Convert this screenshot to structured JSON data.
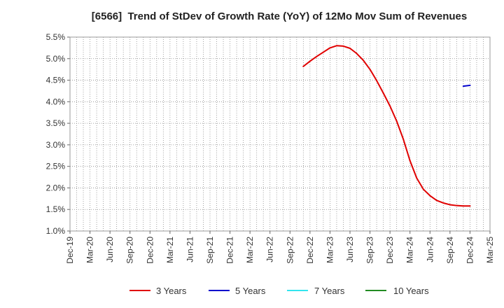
{
  "chart_data": {
    "type": "line",
    "title": "[6566]  Trend of StDev of Growth Rate (YoY) of 12Mo Mov Sum of Revenues",
    "xlabel": "",
    "ylabel": "",
    "ylim": [
      1.0,
      5.5
    ],
    "grid": true,
    "legend_position": "bottom",
    "y_ticks": [
      {
        "value": 1.0,
        "label": "1.0%"
      },
      {
        "value": 1.5,
        "label": "1.5%"
      },
      {
        "value": 2.0,
        "label": "2.0%"
      },
      {
        "value": 2.5,
        "label": "2.5%"
      },
      {
        "value": 3.0,
        "label": "3.0%"
      },
      {
        "value": 3.5,
        "label": "3.5%"
      },
      {
        "value": 4.0,
        "label": "4.0%"
      },
      {
        "value": 4.5,
        "label": "4.5%"
      },
      {
        "value": 5.0,
        "label": "5.0%"
      },
      {
        "value": 5.5,
        "label": "5.5%"
      }
    ],
    "x_ticks": [
      "Dec-19",
      "Mar-20",
      "Jun-20",
      "Sep-20",
      "Dec-20",
      "Mar-21",
      "Jun-21",
      "Sep-21",
      "Dec-21",
      "Mar-22",
      "Jun-22",
      "Sep-22",
      "Dec-22",
      "Mar-23",
      "Jun-23",
      "Sep-23",
      "Dec-23",
      "Mar-24",
      "Jun-24",
      "Sep-24",
      "Dec-24",
      "Mar-25"
    ],
    "series": [
      {
        "name": "3 Years",
        "color": "#e00000",
        "points": [
          {
            "x": "Nov-22",
            "y": 4.82
          },
          {
            "x": "Dec-22",
            "y": 4.94
          },
          {
            "x": "Jan-23",
            "y": 5.05
          },
          {
            "x": "Feb-23",
            "y": 5.15
          },
          {
            "x": "Mar-23",
            "y": 5.25
          },
          {
            "x": "Apr-23",
            "y": 5.3
          },
          {
            "x": "May-23",
            "y": 5.29
          },
          {
            "x": "Jun-23",
            "y": 5.24
          },
          {
            "x": "Jul-23",
            "y": 5.12
          },
          {
            "x": "Aug-23",
            "y": 4.96
          },
          {
            "x": "Sep-23",
            "y": 4.75
          },
          {
            "x": "Oct-23",
            "y": 4.49
          },
          {
            "x": "Nov-23",
            "y": 4.2
          },
          {
            "x": "Dec-23",
            "y": 3.9
          },
          {
            "x": "Jan-24",
            "y": 3.55
          },
          {
            "x": "Feb-24",
            "y": 3.13
          },
          {
            "x": "Mar-24",
            "y": 2.63
          },
          {
            "x": "Apr-24",
            "y": 2.23
          },
          {
            "x": "May-24",
            "y": 1.97
          },
          {
            "x": "Jun-24",
            "y": 1.82
          },
          {
            "x": "Jul-24",
            "y": 1.71
          },
          {
            "x": "Aug-24",
            "y": 1.65
          },
          {
            "x": "Sep-24",
            "y": 1.61
          },
          {
            "x": "Oct-24",
            "y": 1.59
          },
          {
            "x": "Nov-24",
            "y": 1.58
          },
          {
            "x": "Dec-24",
            "y": 1.58
          }
        ]
      },
      {
        "name": "5 Years",
        "color": "#0000cc",
        "points": [
          {
            "x": "Nov-24",
            "y": 4.36
          },
          {
            "x": "Dec-24",
            "y": 4.38
          }
        ]
      },
      {
        "name": "7 Years",
        "color": "#33e5ee",
        "points": []
      },
      {
        "name": "10 Years",
        "color": "#228b22",
        "points": []
      }
    ]
  }
}
